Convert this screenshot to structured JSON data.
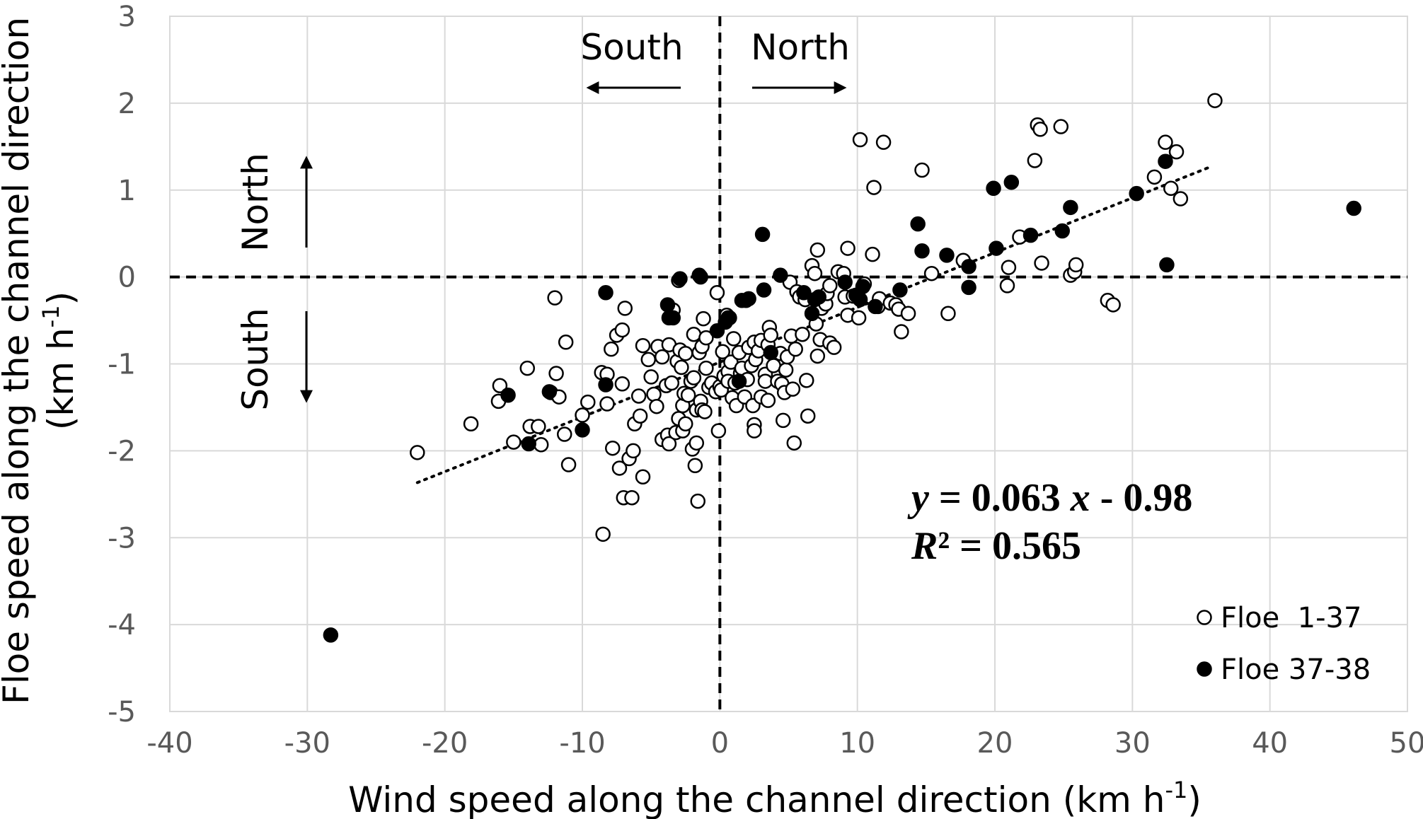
{
  "chart_data": {
    "type": "scatter",
    "xlabel": "Wind speed along the channel direction (km h",
    "xlabel_sup": "-1",
    "xlabel_end": ")",
    "ylabel_line1": "Floe speed along the channel direction",
    "ylabel_line2": "(km h",
    "ylabel_sup": "-1",
    "ylabel_end": ")",
    "xlim": [
      -40,
      50
    ],
    "ylim": [
      -5,
      3
    ],
    "x_ticks": [
      -40,
      -30,
      -20,
      -10,
      0,
      10,
      20,
      30,
      40,
      50
    ],
    "y_ticks": [
      3,
      2,
      1,
      0,
      -1,
      -2,
      -3,
      -4,
      -5
    ],
    "x_tick_labels": [
      "-40",
      "-30",
      "-20",
      "-10",
      "0",
      "10",
      "20",
      "30",
      "40",
      "50"
    ],
    "y_tick_labels": [
      "3",
      "2",
      "1",
      "0",
      "-1",
      "-2",
      "-3",
      "-4",
      "-5"
    ],
    "grid": true,
    "legend_position": "bottom-right",
    "annotations": {
      "top_left": "South",
      "top_right": "North",
      "left_up": "North",
      "left_down": "South"
    },
    "equation": {
      "y": "y",
      "eq_text": " = 0.063 ",
      "x": "x",
      "eq_tail": " - 0.98",
      "r": "R",
      "r_text": "² = 0.565"
    },
    "trendline": {
      "slope": 0.063,
      "intercept": -0.98,
      "x_range": [
        -22,
        35.5
      ],
      "style": "dotted"
    },
    "series": [
      {
        "name": "Floe  1-37",
        "marker": "open-circle",
        "points": [
          [
            -22,
            -2.02
          ],
          [
            -18.1,
            -1.69
          ],
          [
            -16,
            -1.25
          ],
          [
            -16.1,
            -1.43
          ],
          [
            -15,
            -1.9
          ],
          [
            -14,
            -1.05
          ],
          [
            -13.8,
            -1.72
          ],
          [
            -13.2,
            -1.72
          ],
          [
            -13,
            -1.93
          ],
          [
            -12.3,
            -1.33
          ],
          [
            -11.9,
            -1.11
          ],
          [
            -12,
            -0.24
          ],
          [
            -11.7,
            -1.38
          ],
          [
            -11.3,
            -1.81
          ],
          [
            -11.2,
            -0.75
          ],
          [
            -11,
            -2.16
          ],
          [
            -10,
            -1.59
          ],
          [
            -9.6,
            -1.44
          ],
          [
            -8.6,
            -1.1
          ],
          [
            -8.5,
            -2.96
          ],
          [
            -8.2,
            -1.12
          ],
          [
            -8.2,
            -1.46
          ],
          [
            -7.9,
            -0.83
          ],
          [
            -7.8,
            -1.97
          ],
          [
            -7.5,
            -0.67
          ],
          [
            -7.3,
            -2.2
          ],
          [
            -7.1,
            -0.61
          ],
          [
            -7.1,
            -1.23
          ],
          [
            -7,
            -2.54
          ],
          [
            -6.9,
            -0.36
          ],
          [
            -6.6,
            -2.09
          ],
          [
            -6.4,
            -2.54
          ],
          [
            -6.3,
            -2.0
          ],
          [
            -6.2,
            -1.69
          ],
          [
            -5.9,
            -1.37
          ],
          [
            -5.8,
            -1.6
          ],
          [
            -5.6,
            -0.79
          ],
          [
            -5.6,
            -2.3
          ],
          [
            -5.2,
            -0.95
          ],
          [
            -5,
            -1.15
          ],
          [
            -4.8,
            -1.35
          ],
          [
            -4.6,
            -1.49
          ],
          [
            -4.5,
            -0.8
          ],
          [
            -4.2,
            -1.87
          ],
          [
            -4.2,
            -0.92
          ],
          [
            -3.9,
            -1.25
          ],
          [
            -3.8,
            -1.82
          ],
          [
            -3.7,
            -0.78
          ],
          [
            -3.7,
            -1.92
          ],
          [
            -3.5,
            -1.22
          ],
          [
            -3.4,
            -0.38
          ],
          [
            -3.2,
            -1.79
          ],
          [
            -3.1,
            -0.97
          ],
          [
            -3,
            -0.04
          ],
          [
            -3,
            -1.63
          ],
          [
            -2.9,
            -0.84
          ],
          [
            -2.8,
            -1.04
          ],
          [
            -2.7,
            -1.48
          ],
          [
            -2.7,
            -1.77
          ],
          [
            -2.6,
            -1.34
          ],
          [
            -2.5,
            -0.88
          ],
          [
            -2.5,
            -1.69
          ],
          [
            -2.3,
            -1.36
          ],
          [
            -2.1,
            -1.2
          ],
          [
            -2,
            -1.98
          ],
          [
            -1.9,
            -0.66
          ],
          [
            -1.9,
            -1.16
          ],
          [
            -1.8,
            -2.17
          ],
          [
            -1.7,
            -1.53
          ],
          [
            -1.7,
            -1.91
          ],
          [
            -1.6,
            -2.58
          ],
          [
            -1.5,
            -0.87
          ],
          [
            -1.4,
            -1.43
          ],
          [
            -1.3,
            -0.8
          ],
          [
            -1.3,
            -1.53
          ],
          [
            -1.2,
            -0.48
          ],
          [
            -1.1,
            -1.55
          ],
          [
            -1,
            -0.7
          ],
          [
            -1,
            -1.05
          ],
          [
            -0.8,
            -1.27
          ],
          [
            -0.6,
            -1.22
          ],
          [
            -0.3,
            -1.32
          ],
          [
            -0.2,
            -0.18
          ],
          [
            -0.1,
            -1.77
          ],
          [
            0,
            -1.26
          ],
          [
            0.1,
            -1.3
          ],
          [
            0.2,
            -0.86
          ],
          [
            0.3,
            -1.14
          ],
          [
            0.5,
            -0.44
          ],
          [
            0.6,
            -1.09
          ],
          [
            0.6,
            -1.2
          ],
          [
            0.7,
            -0.47
          ],
          [
            0.8,
            -0.98
          ],
          [
            0.9,
            -1.39
          ],
          [
            1,
            -0.71
          ],
          [
            1.1,
            -1.22
          ],
          [
            1.2,
            -1.48
          ],
          [
            1.4,
            -0.87
          ],
          [
            1.5,
            -1.11
          ],
          [
            1.6,
            -1.05
          ],
          [
            1.8,
            -1.38
          ],
          [
            1.9,
            -0.27
          ],
          [
            2,
            -1.18
          ],
          [
            2.1,
            -0.81
          ],
          [
            2.3,
            -1.02
          ],
          [
            2.4,
            -1.48
          ],
          [
            2.5,
            -0.75
          ],
          [
            2.5,
            -1.7
          ],
          [
            2.5,
            -1.77
          ],
          [
            2.6,
            -0.95
          ],
          [
            2.8,
            -0.85
          ],
          [
            3,
            -1.38
          ],
          [
            3,
            -0.73
          ],
          [
            3.3,
            -1.12
          ],
          [
            3.3,
            -1.2
          ],
          [
            3.5,
            -1.42
          ],
          [
            3.5,
            -0.78
          ],
          [
            3.6,
            -0.58
          ],
          [
            3.7,
            -0.67
          ],
          [
            3.9,
            -1.02
          ],
          [
            4.2,
            -1.2
          ],
          [
            4.4,
            -0.88
          ],
          [
            4.5,
            -1.23
          ],
          [
            4.6,
            -1.65
          ],
          [
            4.7,
            -1.33
          ],
          [
            4.8,
            -1.07
          ],
          [
            4.9,
            -0.92
          ],
          [
            5.1,
            -0.06
          ],
          [
            5.2,
            -0.68
          ],
          [
            5.3,
            -1.29
          ],
          [
            5.4,
            -1.91
          ],
          [
            5.5,
            -0.83
          ],
          [
            5.6,
            -0.17
          ],
          [
            5.8,
            -0.23
          ],
          [
            6,
            -0.66
          ],
          [
            6.2,
            -0.26
          ],
          [
            6.3,
            -1.19
          ],
          [
            6.4,
            -1.6
          ],
          [
            6.7,
            0.13
          ],
          [
            6.9,
            0.04
          ],
          [
            7,
            -0.54
          ],
          [
            7.1,
            0.31
          ],
          [
            7.1,
            -0.91
          ],
          [
            7.3,
            -0.72
          ],
          [
            7.4,
            -0.36
          ],
          [
            7.7,
            -0.31
          ],
          [
            7.8,
            -0.19
          ],
          [
            8,
            -0.76
          ],
          [
            8,
            -0.1
          ],
          [
            8.3,
            -0.81
          ],
          [
            8.6,
            0.06
          ],
          [
            9,
            0.04
          ],
          [
            9.1,
            -0.23
          ],
          [
            9.3,
            -0.44
          ],
          [
            9.3,
            0.33
          ],
          [
            9.7,
            -0.22
          ],
          [
            10.1,
            -0.47
          ],
          [
            10.5,
            -0.08
          ],
          [
            10.2,
            1.58
          ],
          [
            11.1,
            0.26
          ],
          [
            11.2,
            1.03
          ],
          [
            11.5,
            -0.34
          ],
          [
            11.6,
            -0.25
          ],
          [
            11.9,
            1.55
          ],
          [
            12.4,
            -0.3
          ],
          [
            12.8,
            -0.32
          ],
          [
            13,
            -0.37
          ],
          [
            13.2,
            -0.63
          ],
          [
            13.7,
            -0.42
          ],
          [
            14.7,
            1.23
          ],
          [
            15.4,
            0.04
          ],
          [
            16.6,
            -0.42
          ],
          [
            17.7,
            0.19
          ],
          [
            20.9,
            -0.1
          ],
          [
            21,
            0.11
          ],
          [
            21.8,
            0.46
          ],
          [
            22.9,
            1.34
          ],
          [
            23.1,
            1.75
          ],
          [
            23.3,
            1.7
          ],
          [
            23.4,
            0.16
          ],
          [
            24.8,
            1.73
          ],
          [
            25.5,
            0.02
          ],
          [
            25.8,
            0.06
          ],
          [
            25.9,
            0.14
          ],
          [
            28.2,
            -0.27
          ],
          [
            28.6,
            -0.32
          ],
          [
            31.6,
            1.15
          ],
          [
            32.4,
            1.55
          ],
          [
            32.8,
            1.02
          ],
          [
            33.2,
            1.44
          ],
          [
            33.5,
            0.9
          ],
          [
            36,
            2.03
          ]
        ]
      },
      {
        "name": "Floe 37-38",
        "marker": "filled-circle",
        "points": [
          [
            -28.3,
            -4.12
          ],
          [
            -15.4,
            -1.36
          ],
          [
            -13.9,
            -1.92
          ],
          [
            -12.4,
            -1.32
          ],
          [
            -10,
            -1.76
          ],
          [
            -8.3,
            -0.18
          ],
          [
            -8.3,
            -1.24
          ],
          [
            -3.8,
            -0.32
          ],
          [
            -3.7,
            -0.47
          ],
          [
            -3.4,
            -0.47
          ],
          [
            -2.9,
            -0.02
          ],
          [
            -1.5,
            0.02
          ],
          [
            -1.4,
            0.0
          ],
          [
            -0.2,
            -0.62
          ],
          [
            0.4,
            -0.52
          ],
          [
            0.6,
            -0.47
          ],
          [
            1.4,
            -1.2
          ],
          [
            1.6,
            -0.27
          ],
          [
            2.1,
            -0.25
          ],
          [
            3.1,
            0.49
          ],
          [
            3.2,
            -0.15
          ],
          [
            3.7,
            -0.87
          ],
          [
            4.4,
            0.02
          ],
          [
            6.1,
            -0.18
          ],
          [
            6.7,
            -0.42
          ],
          [
            6.9,
            -0.26
          ],
          [
            7.2,
            -0.23
          ],
          [
            9.1,
            -0.06
          ],
          [
            9.9,
            -0.21
          ],
          [
            10.2,
            -0.26
          ],
          [
            10.4,
            -0.11
          ],
          [
            11.3,
            -0.34
          ],
          [
            13.1,
            -0.15
          ],
          [
            14.4,
            0.61
          ],
          [
            14.7,
            0.3
          ],
          [
            16.5,
            0.25
          ],
          [
            18.1,
            0.12
          ],
          [
            18.1,
            -0.12
          ],
          [
            19.9,
            1.02
          ],
          [
            20.1,
            0.33
          ],
          [
            21.2,
            1.09
          ],
          [
            22.6,
            0.48
          ],
          [
            24.9,
            0.53
          ],
          [
            25.5,
            0.8
          ],
          [
            30.3,
            0.96
          ],
          [
            32.4,
            1.33
          ],
          [
            32.5,
            0.14
          ],
          [
            46.1,
            0.79
          ]
        ]
      }
    ]
  }
}
